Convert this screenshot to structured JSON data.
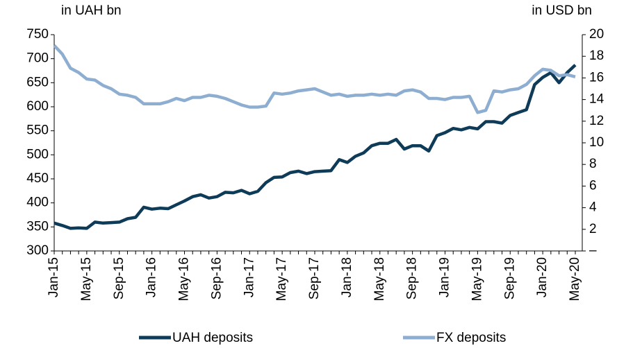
{
  "chart_data": {
    "type": "line",
    "y_label": "in UAH bn",
    "y2_label": "in USD bn",
    "categories": [
      "Jan-15",
      null,
      null,
      null,
      "May-15",
      null,
      null,
      null,
      "Sep-15",
      null,
      null,
      null,
      "Jan-16",
      null,
      null,
      null,
      "May-16",
      null,
      null,
      null,
      "Sep-16",
      null,
      null,
      null,
      "Jan-17",
      null,
      null,
      null,
      "May-17",
      null,
      null,
      null,
      "Sep-17",
      null,
      null,
      null,
      "Jan-18",
      null,
      null,
      null,
      "May-18",
      null,
      null,
      null,
      "Sep-18",
      null,
      null,
      null,
      "Jan-19",
      null,
      null,
      null,
      "May-19",
      null,
      null,
      null,
      "Sep-19",
      null,
      null,
      null,
      "Jan-20",
      null,
      null,
      null,
      "May-20"
    ],
    "series": [
      {
        "name": "UAH deposits",
        "color": "#0d3b58",
        "axis": "y",
        "values": [
          358,
          353,
          347,
          348,
          347,
          360,
          358,
          359,
          360,
          367,
          370,
          391,
          387,
          389,
          388,
          396,
          404,
          413,
          417,
          410,
          413,
          422,
          421,
          426,
          419,
          424,
          442,
          453,
          454,
          463,
          466,
          461,
          465,
          466,
          467,
          490,
          484,
          497,
          504,
          519,
          524,
          524,
          532,
          512,
          519,
          519,
          508,
          540,
          546,
          555,
          552,
          557,
          554,
          569,
          569,
          566,
          582,
          588,
          594,
          646,
          661,
          671,
          650,
          671,
          687
        ]
      },
      {
        "name": "FX deposits",
        "color": "#8eaed1",
        "axis": "y2",
        "values": [
          19.0,
          18.2,
          16.9,
          16.5,
          15.9,
          15.8,
          15.3,
          15.0,
          14.5,
          14.4,
          14.2,
          13.6,
          13.6,
          13.6,
          13.8,
          14.1,
          13.9,
          14.2,
          14.2,
          14.4,
          14.3,
          14.1,
          13.8,
          13.5,
          13.3,
          13.3,
          13.4,
          14.6,
          14.5,
          14.6,
          14.8,
          14.9,
          15.0,
          14.7,
          14.4,
          14.5,
          14.3,
          14.4,
          14.4,
          14.5,
          14.4,
          14.5,
          14.4,
          14.8,
          14.9,
          14.7,
          14.1,
          14.1,
          14.0,
          14.2,
          14.2,
          14.3,
          12.8,
          13.0,
          14.8,
          14.7,
          14.9,
          15.0,
          15.4,
          16.2,
          16.8,
          16.7,
          16.2,
          16.3,
          16.1
        ]
      }
    ],
    "ylim": [
      300,
      750
    ],
    "yticks": [
      300,
      350,
      400,
      450,
      500,
      550,
      600,
      650,
      700,
      750
    ],
    "y2lim": [
      0,
      20
    ],
    "y2ticks": [
      {
        "value": 0,
        "label": "–"
      },
      2,
      4,
      6,
      8,
      10,
      12,
      14,
      16,
      18,
      20
    ],
    "legend": "bottom"
  }
}
